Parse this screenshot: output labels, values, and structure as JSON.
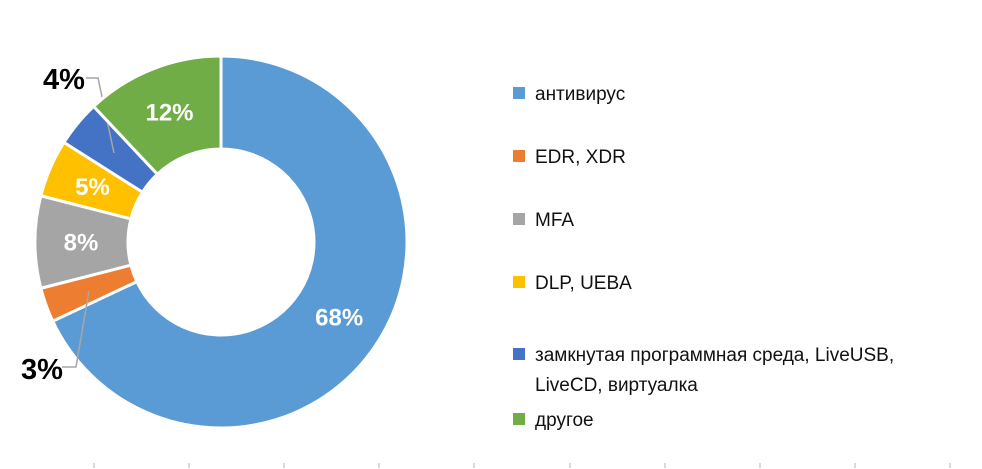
{
  "chart_data": {
    "type": "pie",
    "subtype": "donut",
    "title": "",
    "hole_ratio": 0.5,
    "start_angle_deg": 0,
    "direction": "clockwise",
    "legend_position": "right",
    "background_color": "#ffffff",
    "inside_label_color": "#ffffff",
    "outside_label_color": "#000000",
    "leader_line_color": "#a6a6a6",
    "slices": [
      {
        "id": "antivirus",
        "label": "антивирус",
        "value": 68,
        "display": "68%",
        "color": "#5B9BD5",
        "label_placement": "inside"
      },
      {
        "id": "edr-xdr",
        "label": "EDR, XDR",
        "value": 3,
        "display": "3%",
        "color": "#ED7D31",
        "label_placement": "outside"
      },
      {
        "id": "mfa",
        "label": "MFA",
        "value": 8,
        "display": "8%",
        "color": "#A5A5A5",
        "label_placement": "inside"
      },
      {
        "id": "dlp-ueba",
        "label": "DLP, UEBA",
        "value": 5,
        "display": "5%",
        "color": "#FFC000",
        "label_placement": "inside"
      },
      {
        "id": "closed-software-environment",
        "label": "замкнутая программная среда, LiveUSB, LiveCD, виртуалка",
        "value": 4,
        "display": "4%",
        "color": "#4472C4",
        "label_placement": "outside"
      },
      {
        "id": "other",
        "label": "другое",
        "value": 12,
        "display": "12%",
        "color": "#70AD47",
        "label_placement": "inside"
      }
    ]
  },
  "bottom_ticks": {
    "count": 10,
    "color": "#d8d8de"
  }
}
